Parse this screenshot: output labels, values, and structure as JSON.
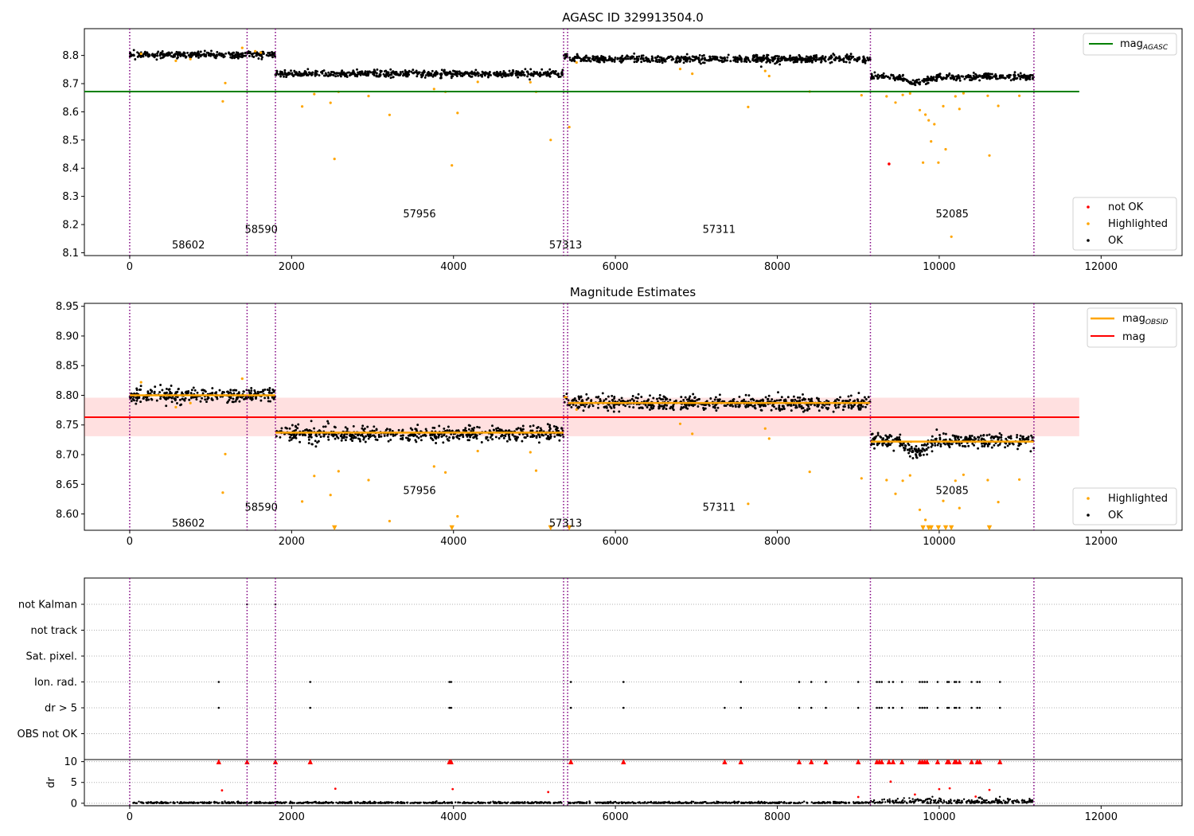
{
  "chart_data": [
    {
      "type": "scatter",
      "title": "AGASC ID 329913504.0",
      "xlim": [
        -560,
        13000
      ],
      "ylim": [
        8.09,
        8.895
      ],
      "x_ticks": [
        0,
        2000,
        4000,
        6000,
        8000,
        10000,
        12000
      ],
      "x_tick_labels": [
        "0",
        "2000",
        "4000",
        "6000",
        "8000",
        "10000",
        "12000"
      ],
      "y_ticks": [
        8.1,
        8.2,
        8.3,
        8.4,
        8.5,
        8.6,
        8.7,
        8.8
      ],
      "y_tick_labels": [
        "8.1",
        "8.2",
        "8.3",
        "8.4",
        "8.5",
        "8.6",
        "8.7",
        "8.8"
      ],
      "obsid_boundaries": [
        0,
        1450,
        1800,
        5360,
        5410,
        9150,
        11170
      ],
      "hlines": [
        {
          "name": "mag_AGASC",
          "value": 8.672,
          "x_range": [
            -560,
            11730
          ],
          "color": "#008000"
        }
      ],
      "segments": [
        {
          "obsid": "58602",
          "x_range": [
            0,
            1450
          ],
          "level": 8.802,
          "label_y": 8.13
        },
        {
          "obsid": "58590",
          "x_range": [
            1450,
            1800
          ],
          "level": 8.804,
          "label_y": 8.185
        },
        {
          "obsid": "57956",
          "x_range": [
            1800,
            5360
          ],
          "level": 8.735,
          "label_y": 8.24
        },
        {
          "obsid": "57313",
          "x_range": [
            5360,
            5410
          ],
          "level": 8.795,
          "label_y": 8.13
        },
        {
          "obsid": "57311",
          "x_range": [
            5410,
            9150
          ],
          "level": 8.787,
          "label_y": 8.185
        },
        {
          "obsid": "52085",
          "x_range": [
            9150,
            11170
          ],
          "level": 8.724,
          "label_y": 8.24
        }
      ],
      "highlighted_points": [
        [
          140,
          8.806
        ],
        [
          570,
          8.781
        ],
        [
          750,
          8.787
        ],
        [
          1150,
          8.637
        ],
        [
          1180,
          8.702
        ],
        [
          1390,
          8.827
        ],
        [
          1550,
          8.815
        ],
        [
          1620,
          8.81
        ],
        [
          2130,
          8.619
        ],
        [
          2280,
          8.663
        ],
        [
          2480,
          8.632
        ],
        [
          2530,
          8.433
        ],
        [
          2580,
          8.671
        ],
        [
          2950,
          8.656
        ],
        [
          3210,
          8.589
        ],
        [
          3760,
          8.681
        ],
        [
          3900,
          8.671
        ],
        [
          3980,
          8.41
        ],
        [
          4050,
          8.596
        ],
        [
          4300,
          8.706
        ],
        [
          4950,
          8.705
        ],
        [
          5020,
          8.671
        ],
        [
          5200,
          8.5
        ],
        [
          5430,
          8.546
        ],
        [
          5520,
          8.775
        ],
        [
          6800,
          8.752
        ],
        [
          6950,
          8.735
        ],
        [
          7640,
          8.617
        ],
        [
          7850,
          8.745
        ],
        [
          7900,
          8.727
        ],
        [
          8400,
          8.672
        ],
        [
          9040,
          8.659
        ],
        [
          9350,
          8.655
        ],
        [
          9460,
          8.633
        ],
        [
          9550,
          8.66
        ],
        [
          9640,
          8.665
        ],
        [
          9760,
          8.606
        ],
        [
          9800,
          8.42
        ],
        [
          9830,
          8.59
        ],
        [
          9870,
          8.57
        ],
        [
          9900,
          8.495
        ],
        [
          9940,
          8.556
        ],
        [
          9990,
          8.42
        ],
        [
          10050,
          8.62
        ],
        [
          10080,
          8.467
        ],
        [
          10200,
          8.655
        ],
        [
          10250,
          8.61
        ],
        [
          10300,
          8.666
        ],
        [
          10600,
          8.657
        ],
        [
          10620,
          8.445
        ],
        [
          10730,
          8.621
        ],
        [
          10990,
          8.657
        ],
        [
          10150,
          8.157
        ]
      ],
      "not_ok_points": [
        [
          9380,
          8.415
        ]
      ],
      "legend_top": [
        {
          "label": "mag",
          "sub": "AGASC",
          "color": "#008000"
        }
      ],
      "legend_bottom": [
        {
          "label": "not OK",
          "color": "#ff0000"
        },
        {
          "label": "Highlighted",
          "color": "#ffa500"
        },
        {
          "label": "OK",
          "color": "#000000"
        }
      ]
    },
    {
      "type": "scatter",
      "title": "Magnitude Estimates",
      "xlim": [
        -560,
        13000
      ],
      "ylim": [
        8.5725,
        8.955
      ],
      "x_ticks": [
        0,
        2000,
        4000,
        6000,
        8000,
        10000,
        12000
      ],
      "x_tick_labels": [
        "0",
        "2000",
        "4000",
        "6000",
        "8000",
        "10000",
        "12000"
      ],
      "y_ticks": [
        8.6,
        8.65,
        8.7,
        8.75,
        8.8,
        8.85,
        8.9,
        8.95
      ],
      "y_tick_labels": [
        "8.60",
        "8.65",
        "8.70",
        "8.75",
        "8.80",
        "8.85",
        "8.90",
        "8.95"
      ],
      "obsid_boundaries": [
        0,
        1450,
        1800,
        5360,
        5410,
        9150,
        11170
      ],
      "mag": {
        "value": 8.763,
        "band": [
          8.731,
          8.796
        ],
        "x_range": [
          -560,
          11730
        ],
        "color": "#ff0000"
      },
      "segments": [
        {
          "obsid": "58602",
          "x_range": [
            0,
            1450
          ],
          "level": 8.8,
          "mag_obsid": 8.8,
          "label_y": 8.585
        },
        {
          "obsid": "58590",
          "x_range": [
            1450,
            1800
          ],
          "level": 8.8,
          "mag_obsid": 8.8,
          "label_y": 8.612
        },
        {
          "obsid": "57956",
          "x_range": [
            1800,
            5360
          ],
          "level": 8.735,
          "mag_obsid": 8.737,
          "label_y": 8.64
        },
        {
          "obsid": "57313",
          "x_range": [
            5360,
            5410
          ],
          "level": 8.797,
          "mag_obsid": 8.797,
          "label_y": 8.585
        },
        {
          "obsid": "57311",
          "x_range": [
            5410,
            9150
          ],
          "level": 8.787,
          "mag_obsid": 8.787,
          "label_y": 8.612
        },
        {
          "obsid": "52085",
          "x_range": [
            9150,
            11170
          ],
          "level": 8.724,
          "mag_obsid": 8.722,
          "label_y": 8.64
        }
      ],
      "highlighted_points": [
        [
          140,
          8.822
        ],
        [
          570,
          8.78
        ],
        [
          750,
          8.787
        ],
        [
          1150,
          8.636
        ],
        [
          1180,
          8.701
        ],
        [
          1390,
          8.828
        ],
        [
          2130,
          8.621
        ],
        [
          2280,
          8.664
        ],
        [
          2480,
          8.632
        ],
        [
          2580,
          8.672
        ],
        [
          2950,
          8.657
        ],
        [
          3210,
          8.588
        ],
        [
          3760,
          8.68
        ],
        [
          3900,
          8.67
        ],
        [
          4050,
          8.596
        ],
        [
          4300,
          8.706
        ],
        [
          4950,
          8.704
        ],
        [
          5020,
          8.673
        ],
        [
          5520,
          8.776
        ],
        [
          6800,
          8.752
        ],
        [
          6950,
          8.735
        ],
        [
          7640,
          8.617
        ],
        [
          7850,
          8.744
        ],
        [
          7900,
          8.727
        ],
        [
          8400,
          8.671
        ],
        [
          9040,
          8.66
        ],
        [
          9350,
          8.657
        ],
        [
          9460,
          8.634
        ],
        [
          9550,
          8.656
        ],
        [
          9640,
          8.665
        ],
        [
          9760,
          8.607
        ],
        [
          9830,
          8.59
        ],
        [
          10050,
          8.622
        ],
        [
          10200,
          8.656
        ],
        [
          10250,
          8.61
        ],
        [
          10300,
          8.666
        ],
        [
          10600,
          8.657
        ],
        [
          10730,
          8.62
        ],
        [
          10990,
          8.658
        ]
      ],
      "clipped_points_x": [
        2530,
        3980,
        5200,
        5430,
        9800,
        9870,
        9900,
        9990,
        10080,
        10150,
        10620
      ],
      "legend_top": [
        {
          "label": "mag",
          "sub": "OBSID",
          "color": "#ffa500"
        },
        {
          "label": "mag",
          "sub": "",
          "color": "#ff0000"
        }
      ],
      "legend_bottom": [
        {
          "label": "Highlighted",
          "color": "#ffa500"
        },
        {
          "label": "OK",
          "color": "#000000"
        }
      ]
    },
    {
      "type": "scatter",
      "title": "",
      "xlim": [
        -560,
        13000
      ],
      "x_ticks": [
        0,
        2000,
        4000,
        6000,
        8000,
        10000,
        12000
      ],
      "x_tick_labels": [
        "0",
        "2000",
        "4000",
        "6000",
        "8000",
        "10000",
        "12000"
      ],
      "obsid_boundaries": [
        0,
        1450,
        1800,
        5360,
        5410,
        9150,
        11170
      ],
      "flag_labels": [
        "not Kalman",
        "not track",
        "Sat. pixel.",
        "Ion. rad.",
        "dr > 5",
        "OBS not OK"
      ],
      "flag_points": {
        "not Kalman": [
          1450,
          1800
        ],
        "not track": [],
        "Sat. pixel.": [],
        "Ion. rad.": [
          1100,
          2230,
          3950,
          3970,
          5450,
          6100,
          7550,
          8270,
          8420,
          8600,
          9000,
          9230,
          9260,
          9290,
          9380,
          9430,
          9540,
          9760,
          9790,
          9820,
          9850,
          9980,
          10100,
          10120,
          10190,
          10210,
          10250,
          10400,
          10470,
          10500,
          10750
        ],
        "dr > 5": [
          1100,
          2230,
          3950,
          3970,
          5450,
          6100,
          7350,
          7550,
          8270,
          8420,
          8600,
          9000,
          9230,
          9260,
          9290,
          9380,
          9430,
          9540,
          9760,
          9790,
          9820,
          9850,
          9980,
          10100,
          10120,
          10190,
          10210,
          10250,
          10400,
          10470,
          10500,
          10750
        ],
        "OBS not OK": []
      },
      "dr": {
        "ylabel": "dr",
        "ylim": [
          -0.6,
          10.5
        ],
        "y_ticks": [
          0,
          5,
          10
        ],
        "y_tick_labels": [
          "0",
          "5",
          "10"
        ],
        "clipped_x": [
          1100,
          1450,
          1800,
          2230,
          3950,
          3970,
          5450,
          6100,
          7350,
          7550,
          8270,
          8420,
          8600,
          9000,
          9230,
          9260,
          9290,
          9380,
          9430,
          9540,
          9760,
          9790,
          9820,
          9850,
          9980,
          10100,
          10120,
          10190,
          10210,
          10250,
          10400,
          10470,
          10500,
          10750
        ],
        "outliers": [
          [
            1140,
            3.1
          ],
          [
            2540,
            3.5
          ],
          [
            3990,
            3.4
          ],
          [
            5170,
            2.7
          ],
          [
            9000,
            1.5
          ],
          [
            9400,
            5.2
          ],
          [
            9700,
            2.1
          ],
          [
            10000,
            3.4
          ],
          [
            10130,
            3.6
          ],
          [
            10620,
            3.2
          ],
          [
            10450,
            1.6
          ]
        ]
      }
    }
  ]
}
